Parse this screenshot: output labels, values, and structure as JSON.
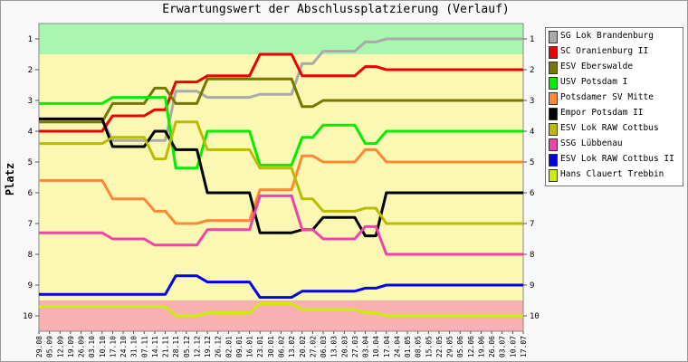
{
  "page": {
    "title": "Erwartungswert der Abschlussplatzierung (Verlauf)",
    "ylabel": "Platz"
  },
  "chart_data": {
    "type": "line",
    "title": "Erwartungswert der Abschlussplatzierung (Verlauf)",
    "xlabel": "",
    "ylabel": "Platz",
    "ylim": [
      10.5,
      0.5
    ],
    "y_ticks": [
      1,
      2,
      3,
      4,
      5,
      6,
      7,
      8,
      9,
      10
    ],
    "y_inverted": true,
    "zones": [
      {
        "from": 0.5,
        "to": 1.5,
        "color": "#aaf5b0"
      },
      {
        "from": 1.5,
        "to": 9.5,
        "color": "#fbf8b4"
      },
      {
        "from": 9.5,
        "to": 10.5,
        "color": "#f8b0b0"
      }
    ],
    "x": [
      "29.08",
      "05.09",
      "12.09",
      "19.09",
      "26.09",
      "03.10",
      "10.10",
      "17.10",
      "24.10",
      "31.10",
      "07.11",
      "14.11",
      "21.11",
      "28.11",
      "05.12",
      "12.12",
      "19.12",
      "26.12",
      "02.01",
      "09.01",
      "16.01",
      "23.01",
      "30.01",
      "06.02",
      "13.02",
      "20.02",
      "27.02",
      "06.03",
      "13.03",
      "20.03",
      "27.03",
      "03.04",
      "10.04",
      "17.04",
      "24.04",
      "01.05",
      "08.05",
      "15.05",
      "22.05",
      "29.05",
      "05.06",
      "12.06",
      "19.06",
      "26.06",
      "03.07",
      "10.07",
      "17.07"
    ],
    "series": [
      {
        "name": "SG Lok Brandenburg",
        "color": "#aaaaaa",
        "values": [
          3.6,
          3.6,
          3.6,
          3.6,
          3.6,
          3.6,
          3.6,
          4.3,
          4.3,
          4.3,
          4.3,
          4.3,
          4.3,
          2.7,
          2.7,
          2.7,
          2.9,
          2.9,
          2.9,
          2.9,
          2.9,
          2.8,
          2.8,
          2.8,
          2.8,
          1.8,
          1.8,
          1.4,
          1.4,
          1.4,
          1.4,
          1.1,
          1.1,
          1,
          1,
          1,
          1,
          1,
          1,
          1,
          1,
          1,
          1,
          1,
          1,
          1,
          1
        ]
      },
      {
        "name": "SC Oranienburg II",
        "color": "#ee0000",
        "values": [
          4,
          4,
          4,
          4,
          4,
          4,
          4,
          3.5,
          3.5,
          3.5,
          3.5,
          3.3,
          3.3,
          2.4,
          2.4,
          2.4,
          2.2,
          2.2,
          2.2,
          2.2,
          2.2,
          1.5,
          1.5,
          1.5,
          1.5,
          2.2,
          2.2,
          2.2,
          2.2,
          2.2,
          2.2,
          1.9,
          1.9,
          2,
          2,
          2,
          2,
          2,
          2,
          2,
          2,
          2,
          2,
          2,
          2,
          2,
          2
        ]
      },
      {
        "name": "ESV Eberswalde",
        "color": "#777700",
        "values": [
          3.7,
          3.7,
          3.7,
          3.7,
          3.7,
          3.7,
          3.7,
          3.1,
          3.1,
          3.1,
          3.1,
          2.6,
          2.6,
          3.1,
          3.1,
          3.1,
          2.3,
          2.3,
          2.3,
          2.3,
          2.3,
          2.3,
          2.3,
          2.3,
          2.3,
          3.2,
          3.2,
          3,
          3,
          3,
          3,
          3,
          3,
          3,
          3,
          3,
          3,
          3,
          3,
          3,
          3,
          3,
          3,
          3,
          3,
          3,
          3
        ]
      },
      {
        "name": "USV Potsdam I",
        "color": "#00ee00",
        "values": [
          3.1,
          3.1,
          3.1,
          3.1,
          3.1,
          3.1,
          3.1,
          2.9,
          2.9,
          2.9,
          2.9,
          2.9,
          2.9,
          5.2,
          5.2,
          5.2,
          4,
          4,
          4,
          4,
          4,
          5.1,
          5.1,
          5.1,
          5.1,
          4.2,
          4.2,
          3.8,
          3.8,
          3.8,
          3.8,
          4.4,
          4.4,
          4,
          4,
          4,
          4,
          4,
          4,
          4,
          4,
          4,
          4,
          4,
          4,
          4,
          4
        ]
      },
      {
        "name": "Potsdamer SV Mitte",
        "color": "#ff8833",
        "values": [
          5.6,
          5.6,
          5.6,
          5.6,
          5.6,
          5.6,
          5.6,
          6.2,
          6.2,
          6.2,
          6.2,
          6.6,
          6.6,
          7,
          7,
          7,
          6.9,
          6.9,
          6.9,
          6.9,
          6.9,
          5.9,
          5.9,
          5.9,
          5.9,
          4.8,
          4.8,
          5,
          5,
          5,
          5,
          4.6,
          4.6,
          5,
          5,
          5,
          5,
          5,
          5,
          5,
          5,
          5,
          5,
          5,
          5,
          5,
          5
        ]
      },
      {
        "name": "Empor Potsdam II",
        "color": "#000000",
        "values": [
          3.6,
          3.6,
          3.6,
          3.6,
          3.6,
          3.6,
          3.6,
          4.5,
          4.5,
          4.5,
          4.5,
          4,
          4,
          4.6,
          4.6,
          4.6,
          6,
          6,
          6,
          6,
          6,
          7.3,
          7.3,
          7.3,
          7.3,
          7.2,
          7.2,
          6.8,
          6.8,
          6.8,
          6.8,
          7.4,
          7.4,
          6,
          6,
          6,
          6,
          6,
          6,
          6,
          6,
          6,
          6,
          6,
          6,
          6,
          6
        ]
      },
      {
        "name": "ESV Lok RAW Cottbus",
        "color": "#bbbb00",
        "values": [
          4.4,
          4.4,
          4.4,
          4.4,
          4.4,
          4.4,
          4.4,
          4.2,
          4.2,
          4.2,
          4.2,
          4.9,
          4.9,
          3.7,
          3.7,
          3.7,
          4.6,
          4.6,
          4.6,
          4.6,
          4.6,
          5.2,
          5.2,
          5.2,
          5.2,
          6.2,
          6.2,
          6.6,
          6.6,
          6.6,
          6.6,
          6.5,
          6.5,
          7,
          7,
          7,
          7,
          7,
          7,
          7,
          7,
          7,
          7,
          7,
          7,
          7,
          7
        ]
      },
      {
        "name": "SSG Lübbenau",
        "color": "#ee44aa",
        "values": [
          7.3,
          7.3,
          7.3,
          7.3,
          7.3,
          7.3,
          7.3,
          7.5,
          7.5,
          7.5,
          7.5,
          7.7,
          7.7,
          7.7,
          7.7,
          7.7,
          7.2,
          7.2,
          7.2,
          7.2,
          7.2,
          6.1,
          6.1,
          6.1,
          6.1,
          7.2,
          7.2,
          7.5,
          7.5,
          7.5,
          7.5,
          7.1,
          7.1,
          8,
          8,
          8,
          8,
          8,
          8,
          8,
          8,
          8,
          8,
          8,
          8,
          8,
          8
        ]
      },
      {
        "name": "ESV Lok RAW Cottbus II",
        "color": "#0000ee",
        "values": [
          9.3,
          9.3,
          9.3,
          9.3,
          9.3,
          9.3,
          9.3,
          9.3,
          9.3,
          9.3,
          9.3,
          9.3,
          9.3,
          8.7,
          8.7,
          8.7,
          8.9,
          8.9,
          8.9,
          8.9,
          8.9,
          9.4,
          9.4,
          9.4,
          9.4,
          9.2,
          9.2,
          9.2,
          9.2,
          9.2,
          9.2,
          9.1,
          9.1,
          9,
          9,
          9,
          9,
          9,
          9,
          9,
          9,
          9,
          9,
          9,
          9,
          9,
          9
        ]
      },
      {
        "name": "Hans Clauert Trebbin",
        "color": "#ccee00",
        "values": [
          9.7,
          9.7,
          9.7,
          9.7,
          9.7,
          9.7,
          9.7,
          9.7,
          9.7,
          9.7,
          9.7,
          9.7,
          9.7,
          10,
          10,
          10,
          9.9,
          9.9,
          9.9,
          9.9,
          9.9,
          9.6,
          9.6,
          9.6,
          9.6,
          9.8,
          9.8,
          9.8,
          9.8,
          9.8,
          9.8,
          9.9,
          9.9,
          10,
          10,
          10,
          10,
          10,
          10,
          10,
          10,
          10,
          10,
          10,
          10,
          10,
          10
        ]
      }
    ],
    "legend": "right",
    "grid": false
  }
}
